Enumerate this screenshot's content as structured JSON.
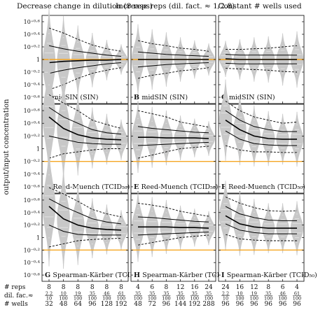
{
  "colors": {
    "violin": "#c8c8c8",
    "median_line": "#000000",
    "quantile_line": "#000000",
    "outer_quantile_line": "#000000",
    "reference_line": "#f5a623",
    "frame": "#000000"
  },
  "chart_data": {
    "type": "violin-grid",
    "ylabel": "output/input concentration",
    "column_titles": [
      "Decrease change in dilution (8 reps)",
      "Increase reps (dil. fact. ≈ 1/2.8)",
      "Constant # wells used"
    ],
    "rows": [
      {
        "method": "midSIN (SIN)",
        "ylim": [
          -0.7,
          0.7
        ],
        "reference_y": 0,
        "ticks": [
          {
            "v": 0.6,
            "label": "10⁺⁰·⁶"
          },
          {
            "v": 0.4,
            "label": "10⁺⁰·⁴"
          },
          {
            "v": 0.2,
            "label": "10⁺⁰·²"
          },
          {
            "v": 0,
            "label": "1"
          },
          {
            "v": -0.2,
            "label": "10⁻⁰·²"
          },
          {
            "v": -0.4,
            "label": "10⁻⁰·⁴"
          },
          {
            "v": -0.6,
            "label": "10⁻⁰·⁶"
          }
        ]
      },
      {
        "method": "Reed-Muench (TCID₅₀)",
        "ylim": [
          -0.7,
          0.7
        ],
        "reference_y": -0.2,
        "ticks": [
          {
            "v": 0.6,
            "label": "10⁺⁰·⁶"
          },
          {
            "v": 0.4,
            "label": "10⁺⁰·⁴"
          },
          {
            "v": 0.2,
            "label": "10⁺⁰·²"
          },
          {
            "v": 0,
            "label": "1"
          },
          {
            "v": -0.2,
            "label": "10⁻⁰·²"
          },
          {
            "v": -0.4,
            "label": "10⁻⁰·⁴"
          },
          {
            "v": -0.6,
            "label": "10⁻⁰·⁶"
          }
        ]
      },
      {
        "method": "Spearman-Kärber (TCID₅₀)",
        "ylim": [
          -0.7,
          0.7
        ],
        "reference_y": -0.2,
        "ticks": [
          {
            "v": 0.6,
            "label": "10⁺⁰·⁶"
          },
          {
            "v": 0.4,
            "label": "10⁺⁰·⁴"
          },
          {
            "v": 0.2,
            "label": "10⁺⁰·²"
          },
          {
            "v": 0,
            "label": "1"
          },
          {
            "v": -0.2,
            "label": "10⁻⁰·²"
          },
          {
            "v": -0.4,
            "label": "10⁻⁰·⁴"
          },
          {
            "v": -0.6,
            "label": "10⁻⁰·⁶"
          }
        ]
      }
    ],
    "panel_letters": [
      "A",
      "B",
      "C",
      "D",
      "E",
      "F",
      "G",
      "H",
      "I"
    ],
    "row_header_labels": [
      "# reps",
      "dil. fac.≈",
      "# wells"
    ],
    "columns": [
      {
        "reps": [
          "8",
          "8",
          "8",
          "8",
          "8",
          "8"
        ],
        "dil_num": [
          "2.2",
          "10",
          "19",
          "35",
          "46",
          "61"
        ],
        "dil_den": [
          "10",
          "100",
          "100",
          "100",
          "100",
          "100"
        ],
        "wells": [
          "32",
          "48",
          "64",
          "96",
          "128",
          "192"
        ]
      },
      {
        "reps": [
          "4",
          "6",
          "8",
          "12",
          "16",
          "24"
        ],
        "dil_num": [
          "35",
          "35",
          "35",
          "35",
          "35",
          "35"
        ],
        "dil_den": [
          "100",
          "100",
          "100",
          "100",
          "100",
          "100"
        ],
        "wells": [
          "48",
          "72",
          "96",
          "144",
          "192",
          "288"
        ]
      },
      {
        "reps": [
          "24",
          "16",
          "12",
          "8",
          "6",
          "4"
        ],
        "dil_num": [
          "2.2",
          "10",
          "19",
          "35",
          "46",
          "61"
        ],
        "dil_den": [
          "10",
          "100",
          "100",
          "100",
          "100",
          "100"
        ],
        "wells": [
          "96",
          "96",
          "96",
          "96",
          "96",
          "96"
        ]
      }
    ],
    "panels": [
      {
        "median": [
          -0.05,
          -0.03,
          -0.02,
          -0.01,
          -0.01,
          0.0
        ],
        "inner": [
          [
            -0.22,
            0.22
          ],
          [
            -0.17,
            0.17
          ],
          [
            -0.13,
            0.13
          ],
          [
            -0.1,
            0.1
          ],
          [
            -0.07,
            0.07
          ],
          [
            -0.05,
            0.05
          ]
        ],
        "outer": [
          [
            -0.48,
            0.5
          ],
          [
            -0.4,
            0.42
          ],
          [
            -0.3,
            0.32
          ],
          [
            -0.22,
            0.23
          ],
          [
            -0.17,
            0.17
          ],
          [
            -0.13,
            0.13
          ]
        ],
        "spread": [
          0.55,
          0.45,
          0.35,
          0.27,
          0.2,
          0.15
        ]
      },
      {
        "median": [
          0.0,
          0.0,
          0.0,
          0.0,
          0.0,
          0.0
        ],
        "inner": [
          [
            -0.12,
            0.12
          ],
          [
            -0.1,
            0.1
          ],
          [
            -0.08,
            0.08
          ],
          [
            -0.07,
            0.07
          ],
          [
            -0.06,
            0.06
          ],
          [
            -0.05,
            0.05
          ]
        ],
        "outer": [
          [
            -0.3,
            0.3
          ],
          [
            -0.25,
            0.25
          ],
          [
            -0.22,
            0.22
          ],
          [
            -0.18,
            0.18
          ],
          [
            -0.16,
            0.16
          ],
          [
            -0.13,
            0.13
          ]
        ],
        "spread": [
          0.35,
          0.3,
          0.27,
          0.22,
          0.19,
          0.16
        ]
      },
      {
        "median": [
          0.01,
          0.0,
          0.0,
          0.0,
          0.0,
          0.0
        ],
        "inner": [
          [
            -0.06,
            0.08
          ],
          [
            -0.07,
            0.07
          ],
          [
            -0.07,
            0.07
          ],
          [
            -0.07,
            0.07
          ],
          [
            -0.07,
            0.07
          ],
          [
            -0.07,
            0.07
          ]
        ],
        "outer": [
          [
            -0.14,
            0.16
          ],
          [
            -0.15,
            0.16
          ],
          [
            -0.16,
            0.17
          ],
          [
            -0.17,
            0.18
          ],
          [
            -0.19,
            0.2
          ],
          [
            -0.2,
            0.22
          ]
        ],
        "spread": [
          0.18,
          0.2,
          0.22,
          0.23,
          0.26,
          0.28
        ]
      },
      {
        "median": [
          0.5,
          0.32,
          0.22,
          0.17,
          0.15,
          0.14
        ],
        "inner": [
          [
            0.2,
            0.65
          ],
          [
            0.15,
            0.5
          ],
          [
            0.1,
            0.4
          ],
          [
            0.08,
            0.3
          ],
          [
            0.07,
            0.25
          ],
          [
            0.07,
            0.23
          ]
        ],
        "outer": [
          [
            -0.15,
            0.85
          ],
          [
            -0.08,
            0.72
          ],
          [
            -0.05,
            0.6
          ],
          [
            -0.02,
            0.45
          ],
          [
            0.0,
            0.38
          ],
          [
            0.0,
            0.32
          ]
        ],
        "spread": [
          0.6,
          0.5,
          0.4,
          0.3,
          0.25,
          0.2
        ]
      },
      {
        "median": [
          0.18,
          0.18,
          0.17,
          0.17,
          0.17,
          0.16
        ],
        "inner": [
          [
            0.05,
            0.35
          ],
          [
            0.06,
            0.32
          ],
          [
            0.07,
            0.3
          ],
          [
            0.08,
            0.28
          ],
          [
            0.09,
            0.26
          ],
          [
            0.1,
            0.25
          ]
        ],
        "outer": [
          [
            -0.15,
            0.6
          ],
          [
            -0.1,
            0.55
          ],
          [
            -0.05,
            0.5
          ],
          [
            0.0,
            0.42
          ],
          [
            0.02,
            0.38
          ],
          [
            0.04,
            0.34
          ]
        ],
        "spread": [
          0.35,
          0.3,
          0.27,
          0.22,
          0.19,
          0.17
        ]
      },
      {
        "median": [
          0.45,
          0.3,
          0.2,
          0.16,
          0.15,
          0.15
        ],
        "inner": [
          [
            0.28,
            0.6
          ],
          [
            0.15,
            0.45
          ],
          [
            0.08,
            0.35
          ],
          [
            0.06,
            0.3
          ],
          [
            0.05,
            0.27
          ],
          [
            0.05,
            0.27
          ]
        ],
        "outer": [
          [
            0.05,
            0.75
          ],
          [
            -0.02,
            0.6
          ],
          [
            -0.05,
            0.5
          ],
          [
            -0.05,
            0.45
          ],
          [
            -0.06,
            0.4
          ],
          [
            -0.06,
            0.42
          ]
        ],
        "spread": [
          0.4,
          0.35,
          0.3,
          0.27,
          0.25,
          0.27
        ]
      },
      {
        "median": [
          0.5,
          0.3,
          0.2,
          0.15,
          0.13,
          0.12
        ],
        "inner": [
          [
            0.2,
            0.62
          ],
          [
            0.1,
            0.5
          ],
          [
            0.05,
            0.4
          ],
          [
            0.04,
            0.3
          ],
          [
            0.04,
            0.25
          ],
          [
            0.04,
            0.22
          ]
        ],
        "outer": [
          [
            -0.15,
            0.8
          ],
          [
            -0.1,
            0.7
          ],
          [
            -0.05,
            0.58
          ],
          [
            -0.03,
            0.45
          ],
          [
            -0.02,
            0.38
          ],
          [
            -0.01,
            0.33
          ]
        ],
        "spread": [
          0.6,
          0.5,
          0.4,
          0.3,
          0.25,
          0.2
        ]
      },
      {
        "median": [
          0.17,
          0.17,
          0.17,
          0.16,
          0.16,
          0.15
        ],
        "inner": [
          [
            0.04,
            0.33
          ],
          [
            0.05,
            0.32
          ],
          [
            0.06,
            0.3
          ],
          [
            0.07,
            0.28
          ],
          [
            0.08,
            0.26
          ],
          [
            0.09,
            0.25
          ]
        ],
        "outer": [
          [
            -0.12,
            0.55
          ],
          [
            -0.08,
            0.52
          ],
          [
            -0.04,
            0.48
          ],
          [
            0.0,
            0.42
          ],
          [
            0.02,
            0.38
          ],
          [
            0.04,
            0.34
          ]
        ],
        "spread": [
          0.35,
          0.3,
          0.27,
          0.22,
          0.19,
          0.17
        ]
      },
      {
        "median": [
          0.35,
          0.22,
          0.17,
          0.15,
          0.15,
          0.15
        ],
        "inner": [
          [
            0.22,
            0.5
          ],
          [
            0.12,
            0.38
          ],
          [
            0.08,
            0.32
          ],
          [
            0.06,
            0.28
          ],
          [
            0.06,
            0.27
          ],
          [
            0.06,
            0.27
          ]
        ],
        "outer": [
          [
            0.05,
            0.65
          ],
          [
            -0.02,
            0.55
          ],
          [
            -0.04,
            0.48
          ],
          [
            -0.05,
            0.43
          ],
          [
            -0.05,
            0.42
          ],
          [
            -0.05,
            0.43
          ]
        ],
        "spread": [
          0.35,
          0.32,
          0.28,
          0.25,
          0.25,
          0.27
        ]
      }
    ]
  }
}
